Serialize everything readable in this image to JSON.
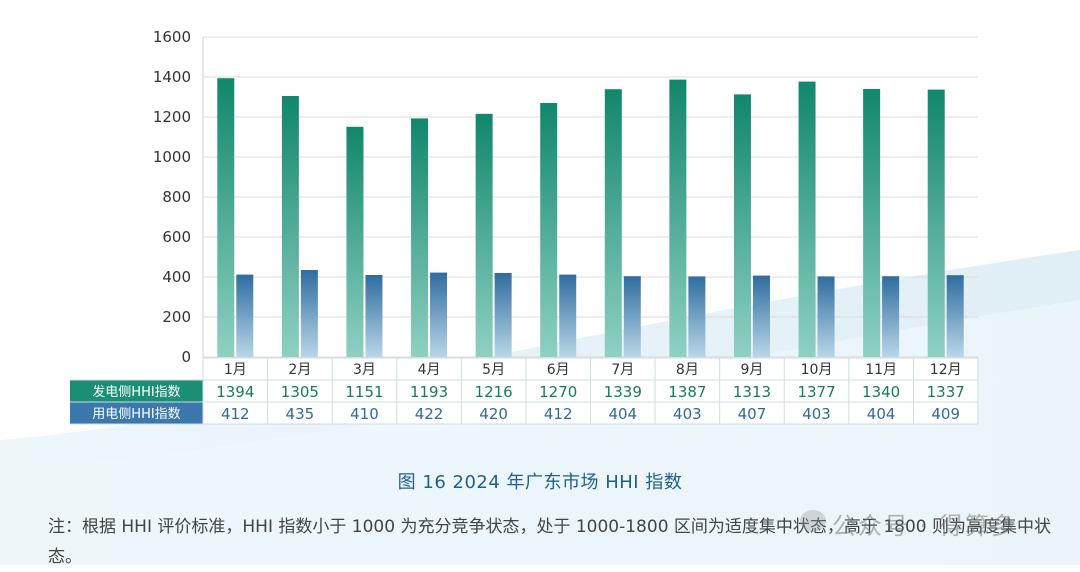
{
  "chart_data": {
    "type": "bar",
    "categories": [
      "1月",
      "2月",
      "3月",
      "4月",
      "5月",
      "6月",
      "7月",
      "8月",
      "9月",
      "10月",
      "11月",
      "12月"
    ],
    "series": [
      {
        "name": "发电侧HHI指数",
        "values": [
          1394,
          1305,
          1151,
          1193,
          1216,
          1270,
          1339,
          1387,
          1313,
          1377,
          1340,
          1337
        ],
        "color": "#1a9479"
      },
      {
        "name": "用电侧HHI指数",
        "values": [
          412,
          435,
          410,
          422,
          420,
          412,
          404,
          403,
          407,
          403,
          404,
          409
        ],
        "color": "#3d7ab0"
      }
    ],
    "ylim": [
      0,
      1600
    ],
    "yticks": [
      0,
      200,
      400,
      600,
      800,
      1000,
      1200,
      1400,
      1600
    ],
    "grid": true,
    "title": "图 16  2024 年广东市场 HHI 指数"
  },
  "note": "注：根据 HHI 评价标准，HHI 指数小于 1000 为充分竞争状态，处于 1000-1800 区间为适度集中状态，高于 1800 则为高度集中状态。",
  "watermark": "公众号 · 得算多"
}
